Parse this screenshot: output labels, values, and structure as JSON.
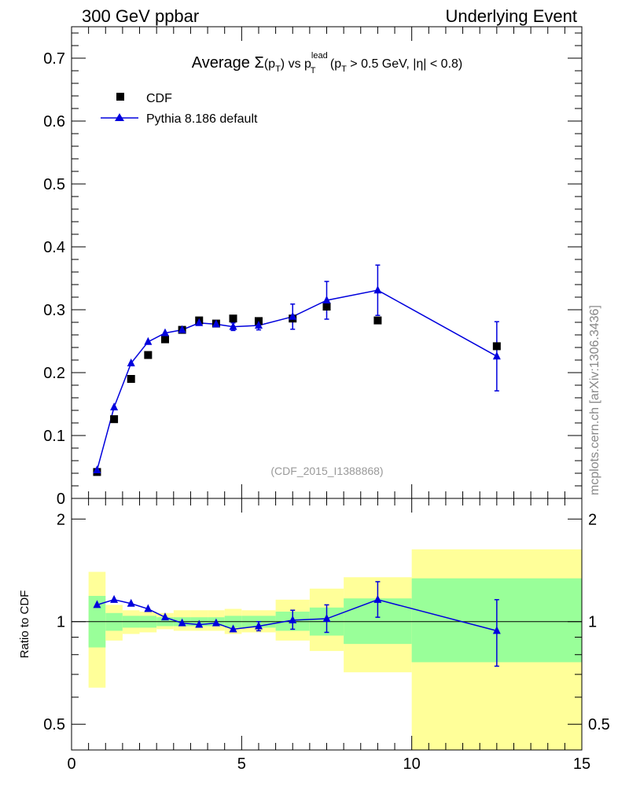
{
  "header": {
    "left": "300 GeV ppbar",
    "right": "Underlying Event"
  },
  "side_label": "mcplots.cern.ch [arXiv:1306.3436]",
  "chart_data": [
    {
      "type": "scatter",
      "title_parts": {
        "prefix": "Average ",
        "sigma": "Σ",
        "pt_open": "(p",
        "sub_T": "T",
        "vs": ") vs p",
        "sup_lead": "lead",
        "sub_T2": "T",
        "cond_open": " (p",
        "sub_T3": "T",
        "cond_rest": " > 0.5 GeV, |η| < 0.8)"
      },
      "watermark": "(CDF_2015_I1388868)",
      "xlim": [
        0,
        15
      ],
      "ylim": [
        0,
        0.75
      ],
      "yticks": [
        "0.1",
        "0.2",
        "0.3",
        "0.4",
        "0.5",
        "0.6",
        "0.7"
      ],
      "ytick_zero": "0",
      "legend": {
        "placement": "top-left",
        "entries": [
          "CDF",
          "Pythia 8.186 default"
        ]
      },
      "series": [
        {
          "name": "CDF",
          "marker": "square",
          "color": "#000000",
          "x": [
            0.75,
            1.25,
            1.75,
            2.25,
            2.75,
            3.25,
            3.75,
            4.25,
            4.75,
            5.5,
            6.5,
            7.5,
            9.0,
            12.5
          ],
          "y": [
            0.042,
            0.126,
            0.19,
            0.228,
            0.253,
            0.268,
            0.283,
            0.278,
            0.286,
            0.282,
            0.286,
            0.305,
            0.283,
            0.242
          ]
        },
        {
          "name": "Pythia 8.186 default",
          "marker": "triangle",
          "color": "#0000dd",
          "x": [
            0.75,
            1.25,
            1.75,
            2.25,
            2.75,
            3.25,
            3.75,
            4.25,
            4.75,
            5.5,
            6.5,
            7.5,
            9.0,
            12.5
          ],
          "y": [
            0.045,
            0.145,
            0.215,
            0.249,
            0.263,
            0.268,
            0.279,
            0.277,
            0.273,
            0.275,
            0.289,
            0.315,
            0.331,
            0.226
          ],
          "yerr": [
            0.001,
            0.002,
            0.002,
            0.003,
            0.003,
            0.004,
            0.004,
            0.005,
            0.006,
            0.007,
            0.02,
            0.03,
            0.04,
            0.055
          ]
        }
      ]
    },
    {
      "type": "scatter",
      "ylabel": "Ratio to CDF",
      "xlim": [
        0,
        15
      ],
      "ylim": [
        0.42,
        2.3
      ],
      "yscale": "log",
      "xticks": [
        "0",
        "5",
        "10",
        "15"
      ],
      "yticks": [
        {
          "value": 0.5,
          "label": "0.5"
        },
        {
          "value": 1,
          "label": "1"
        },
        {
          "value": 2,
          "label": "2"
        }
      ],
      "bands": {
        "edges": [
          0.5,
          1.0,
          1.5,
          2.0,
          2.5,
          3.0,
          3.5,
          4.0,
          4.5,
          5.0,
          6.0,
          7.0,
          8.0,
          10.0,
          15.0
        ],
        "yellow_color": "#ffff99",
        "green_color": "#99ff99",
        "yellow_lo": [
          0.64,
          0.88,
          0.92,
          0.93,
          0.95,
          0.94,
          0.94,
          0.94,
          0.92,
          0.93,
          0.88,
          0.82,
          0.71,
          0.42
        ],
        "yellow_hi": [
          1.4,
          1.12,
          1.08,
          1.07,
          1.06,
          1.08,
          1.08,
          1.08,
          1.09,
          1.08,
          1.16,
          1.25,
          1.35,
          1.63
        ],
        "green_lo": [
          0.84,
          0.94,
          0.96,
          0.96,
          0.97,
          0.97,
          0.97,
          0.97,
          0.96,
          0.96,
          0.94,
          0.91,
          0.86,
          0.76
        ],
        "green_hi": [
          1.19,
          1.06,
          1.04,
          1.04,
          1.03,
          1.03,
          1.03,
          1.03,
          1.04,
          1.04,
          1.07,
          1.1,
          1.17,
          1.34
        ]
      },
      "series": [
        {
          "name": "Pythia 8.186 default",
          "color": "#0000dd",
          "x": [
            0.75,
            1.25,
            1.75,
            2.25,
            2.75,
            3.25,
            3.75,
            4.25,
            4.75,
            5.5,
            6.5,
            7.5,
            9.0,
            12.5
          ],
          "y": [
            1.12,
            1.16,
            1.13,
            1.09,
            1.03,
            0.99,
            0.98,
            0.99,
            0.95,
            0.97,
            1.01,
            1.02,
            1.16,
            0.94
          ],
          "ylo": [
            1.1,
            1.15,
            1.12,
            1.08,
            1.02,
            0.98,
            0.97,
            0.98,
            0.93,
            0.94,
            0.95,
            0.93,
            1.03,
            0.74
          ],
          "yhi": [
            1.14,
            1.17,
            1.14,
            1.1,
            1.04,
            1.0,
            0.99,
            1.0,
            0.97,
            1.0,
            1.08,
            1.12,
            1.31,
            1.16
          ]
        }
      ]
    }
  ]
}
